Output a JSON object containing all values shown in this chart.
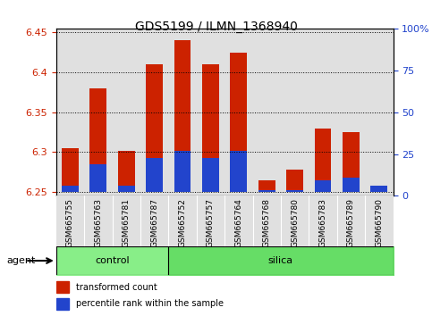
{
  "title": "GDS5199 / ILMN_1368940",
  "samples": [
    "GSM665755",
    "GSM665763",
    "GSM665781",
    "GSM665787",
    "GSM665752",
    "GSM665757",
    "GSM665764",
    "GSM665768",
    "GSM665780",
    "GSM665783",
    "GSM665789",
    "GSM665790"
  ],
  "groups": [
    "control",
    "control",
    "control",
    "control",
    "silica",
    "silica",
    "silica",
    "silica",
    "silica",
    "silica",
    "silica",
    "silica"
  ],
  "red_values": [
    6.305,
    6.38,
    6.302,
    6.41,
    6.44,
    6.41,
    6.425,
    6.265,
    6.278,
    6.33,
    6.325,
    6.258
  ],
  "blue_values": [
    6.258,
    6.285,
    6.258,
    6.292,
    6.302,
    6.292,
    6.302,
    6.252,
    6.252,
    6.265,
    6.268,
    6.258
  ],
  "ylim": [
    6.245,
    6.455
  ],
  "y_ticks_left": [
    6.25,
    6.3,
    6.35,
    6.4,
    6.45
  ],
  "y_ticks_right_vals": [
    0,
    25,
    50,
    75,
    100
  ],
  "y_ticks_right_labels": [
    "0",
    "25",
    "50",
    "75",
    "100%"
  ],
  "base": 6.25,
  "bar_width": 0.6,
  "red_color": "#cc2200",
  "blue_color": "#2244cc",
  "control_color": "#88ee88",
  "silica_color": "#66dd66",
  "col_bg_color": "#e0e0e0",
  "background_color": "#ffffff",
  "n_control": 4,
  "n_total": 12,
  "control_label": "control",
  "silica_label": "silica",
  "agent_label": "agent",
  "legend_red": "transformed count",
  "legend_blue": "percentile rank within the sample"
}
